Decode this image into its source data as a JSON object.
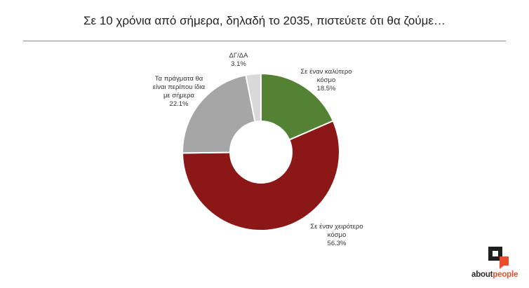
{
  "chart_data": {
    "type": "donut",
    "title": "Σε 10 χρόνια από σήμερα, δηλαδή το 2035, πιστεύετε ότι θα ζούμε…",
    "slices": [
      {
        "label_lines": [
          "Σε έναν καλύτερο",
          "κόσμο"
        ],
        "value": 18.5,
        "value_label": "18.5%",
        "color": "#548235"
      },
      {
        "label_lines": [
          "Σε έναν χειρότερο",
          "κόσμο"
        ],
        "value": 56.3,
        "value_label": "56.3%",
        "color": "#8b1717"
      },
      {
        "label_lines": [
          "Τα πράγματα θα",
          "είναι περίπου ίδια",
          "με σήμερα"
        ],
        "value": 22.1,
        "value_label": "22.1%",
        "color": "#a6a6a6"
      },
      {
        "label_lines": [
          "ΔΓ/ΔΑ"
        ],
        "value": 3.1,
        "value_label": "3.1%",
        "color": "#d9d9d9"
      }
    ]
  },
  "brand": {
    "name_part1": "about",
    "name_part2": "people",
    "accent_color": "#e94d2c"
  }
}
